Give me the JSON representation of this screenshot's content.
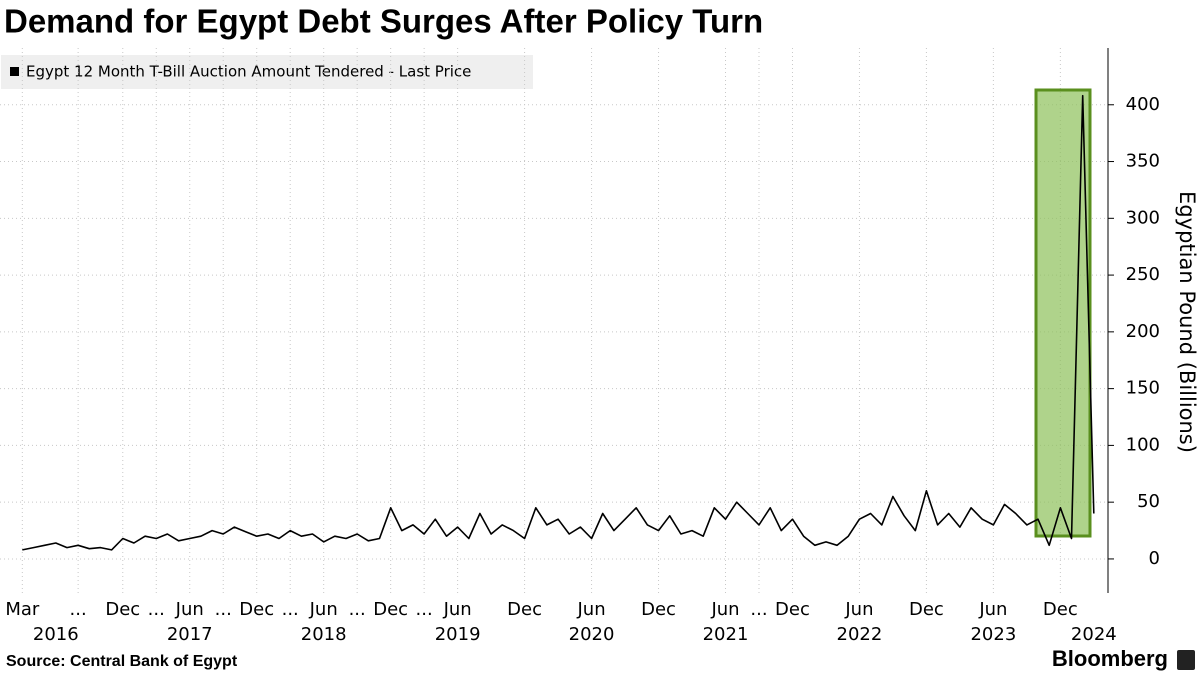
{
  "chart_data": {
    "type": "line",
    "title": "Demand for Egypt Debt Surges After Policy Turn",
    "y_label": "Egyptian Pound (Billions)",
    "source": "Source:  Central Bank of Egypt",
    "brand": "Bloomberg",
    "legend_position": "top-left",
    "grid": true,
    "x": [
      "2016-03",
      "2016-04",
      "2016-05",
      "2016-06",
      "2016-07",
      "2016-08",
      "2016-09",
      "2016-10",
      "2016-11",
      "2016-12",
      "2017-01",
      "2017-02",
      "2017-03",
      "2017-04",
      "2017-05",
      "2017-06",
      "2017-07",
      "2017-08",
      "2017-09",
      "2017-10",
      "2017-11",
      "2017-12",
      "2018-01",
      "2018-02",
      "2018-03",
      "2018-04",
      "2018-05",
      "2018-06",
      "2018-07",
      "2018-08",
      "2018-09",
      "2018-10",
      "2018-11",
      "2018-12",
      "2019-01",
      "2019-02",
      "2019-03",
      "2019-04",
      "2019-05",
      "2019-06",
      "2019-07",
      "2019-08",
      "2019-09",
      "2019-10",
      "2019-11",
      "2019-12",
      "2020-01",
      "2020-02",
      "2020-03",
      "2020-04",
      "2020-05",
      "2020-06",
      "2020-07",
      "2020-08",
      "2020-09",
      "2020-10",
      "2020-11",
      "2020-12",
      "2021-01",
      "2021-02",
      "2021-03",
      "2021-04",
      "2021-05",
      "2021-06",
      "2021-07",
      "2021-08",
      "2021-09",
      "2021-10",
      "2021-11",
      "2021-12",
      "2022-01",
      "2022-02",
      "2022-03",
      "2022-04",
      "2022-05",
      "2022-06",
      "2022-07",
      "2022-08",
      "2022-09",
      "2022-10",
      "2022-11",
      "2022-12",
      "2023-01",
      "2023-02",
      "2023-03",
      "2023-04",
      "2023-05",
      "2023-06",
      "2023-07",
      "2023-08",
      "2023-09",
      "2023-10",
      "2023-11",
      "2023-12",
      "2024-01",
      "2024-02",
      "2024-03"
    ],
    "series": [
      {
        "name": "Egypt 12 Month T-Bill Auction Amount Tendered - Last Price",
        "color": "#000000",
        "values": [
          8,
          10,
          12,
          14,
          10,
          12,
          9,
          10,
          8,
          18,
          14,
          20,
          18,
          22,
          16,
          18,
          20,
          25,
          22,
          28,
          24,
          20,
          22,
          18,
          25,
          20,
          22,
          15,
          20,
          18,
          22,
          16,
          18,
          45,
          25,
          30,
          22,
          35,
          20,
          28,
          18,
          40,
          22,
          30,
          25,
          18,
          45,
          30,
          35,
          22,
          28,
          18,
          40,
          25,
          35,
          45,
          30,
          25,
          38,
          22,
          25,
          20,
          45,
          35,
          50,
          40,
          30,
          45,
          25,
          35,
          20,
          12,
          15,
          12,
          20,
          35,
          40,
          30,
          55,
          38,
          25,
          60,
          30,
          40,
          28,
          45,
          35,
          30,
          48,
          40,
          30,
          35,
          12,
          45,
          18,
          408,
          40
        ]
      }
    ],
    "xlim": [
      "2016-01",
      "2024-04"
    ],
    "ylim": [
      -30,
      450
    ],
    "yticks": [
      0,
      50,
      100,
      150,
      200,
      250,
      300,
      350,
      400
    ],
    "xticks": [
      {
        "value": "2016-03",
        "label": "Mar"
      },
      {
        "value": "2016-08",
        "label": "..."
      },
      {
        "value": "2016-12",
        "label": "Dec"
      },
      {
        "value": "2017-03",
        "label": "..."
      },
      {
        "value": "2017-06",
        "label": "Jun"
      },
      {
        "value": "2017-09",
        "label": "..."
      },
      {
        "value": "2017-12",
        "label": "Dec"
      },
      {
        "value": "2018-03",
        "label": "..."
      },
      {
        "value": "2018-06",
        "label": "Jun"
      },
      {
        "value": "2018-09",
        "label": "..."
      },
      {
        "value": "2018-12",
        "label": "Dec"
      },
      {
        "value": "2019-03",
        "label": "..."
      },
      {
        "value": "2019-06",
        "label": "Jun"
      },
      {
        "value": "2019-12",
        "label": "Dec"
      },
      {
        "value": "2020-06",
        "label": "Jun"
      },
      {
        "value": "2020-12",
        "label": "Dec"
      },
      {
        "value": "2021-06",
        "label": "Jun"
      },
      {
        "value": "2021-09",
        "label": "..."
      },
      {
        "value": "2021-12",
        "label": "Dec"
      },
      {
        "value": "2022-06",
        "label": "Jun"
      },
      {
        "value": "2022-12",
        "label": "Dec"
      },
      {
        "value": "2023-06",
        "label": "Jun"
      },
      {
        "value": "2023-12",
        "label": "Dec"
      }
    ],
    "xtick_years": [
      {
        "value": "2016-06",
        "label": "2016"
      },
      {
        "value": "2017-06",
        "label": "2017"
      },
      {
        "value": "2018-06",
        "label": "2018"
      },
      {
        "value": "2019-06",
        "label": "2019"
      },
      {
        "value": "2020-06",
        "label": "2020"
      },
      {
        "value": "2021-06",
        "label": "2021"
      },
      {
        "value": "2022-06",
        "label": "2022"
      },
      {
        "value": "2023-06",
        "label": "2023"
      },
      {
        "value": "2024-03",
        "label": "2024"
      }
    ]
  }
}
